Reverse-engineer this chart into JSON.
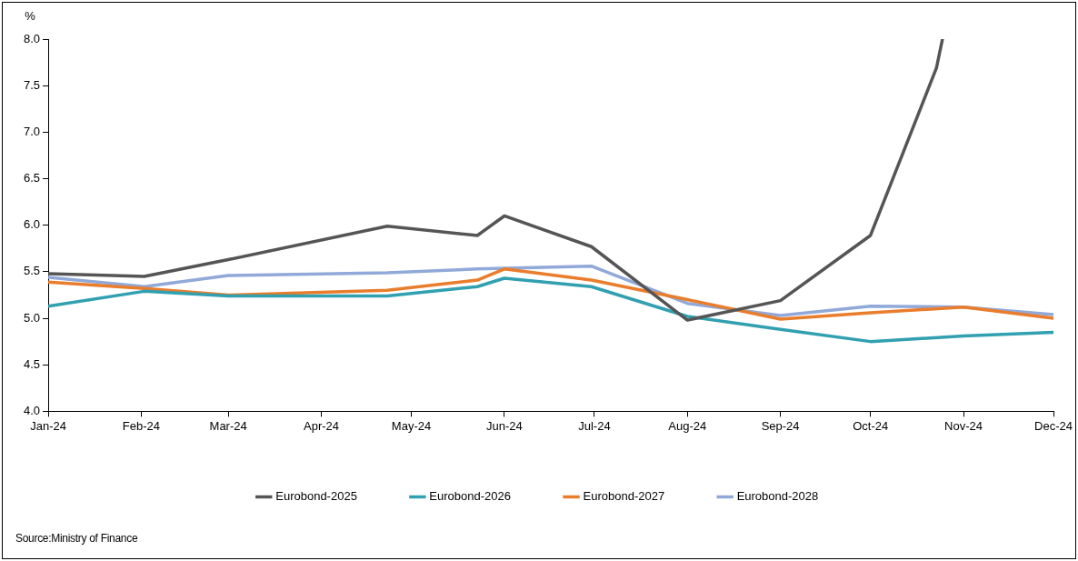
{
  "chart_data": {
    "type": "line",
    "ylabel": "%",
    "legend": "bottom",
    "marker": "none",
    "line_style": "solid",
    "grid": false,
    "xlim": [
      "2024-01-01",
      "2024-12-01"
    ],
    "ylim": [
      4,
      8
    ],
    "xticks": [
      {
        "value": "2024-01-01",
        "label": "Jan-24"
      },
      {
        "value": "2024-02-01",
        "label": "Feb-24"
      },
      {
        "value": "2024-03-01",
        "label": "Mar-24"
      },
      {
        "value": "2024-04-01",
        "label": "Apr-24"
      },
      {
        "value": "2024-05-01",
        "label": "May-24"
      },
      {
        "value": "2024-06-01",
        "label": "Jun-24"
      },
      {
        "value": "2024-07-01",
        "label": "Jul-24"
      },
      {
        "value": "2024-08-01",
        "label": "Aug-24"
      },
      {
        "value": "2024-09-01",
        "label": "Sep-24"
      },
      {
        "value": "2024-10-01",
        "label": "Oct-24"
      },
      {
        "value": "2024-11-01",
        "label": "Nov-24"
      },
      {
        "value": "2024-12-01",
        "label": "Dec-24"
      }
    ],
    "yticks": [
      {
        "value": 4,
        "label": "4.0"
      },
      {
        "value": 4.5,
        "label": "4.5"
      },
      {
        "value": 5,
        "label": "5.0"
      },
      {
        "value": 5.5,
        "label": "5.5"
      },
      {
        "value": 6,
        "label": "6.0"
      },
      {
        "value": 6.5,
        "label": "6.5"
      },
      {
        "value": 7,
        "label": "7.0"
      },
      {
        "value": 7.5,
        "label": "7.5"
      },
      {
        "value": 8,
        "label": "8.0"
      }
    ],
    "series": [
      {
        "name": "Eurobond-2025",
        "color": "#555555",
        "x": [
          "2024-01-01",
          "2024-02-02",
          "2024-03-01",
          "2024-04-23",
          "2024-05-23",
          "2024-06-01",
          "2024-06-30",
          "2024-08-01",
          "2024-09-01",
          "2024-10-01",
          "2024-10-23",
          "2024-10-25"
        ],
        "values": [
          5.48,
          5.45,
          5.63,
          5.99,
          5.89,
          6.1,
          5.77,
          4.98,
          5.19,
          5.89,
          7.69,
          8.0
        ]
      },
      {
        "name": "Eurobond-2026",
        "color": "#31a0b0",
        "x": [
          "2024-01-01",
          "2024-02-02",
          "2024-03-01",
          "2024-04-23",
          "2024-05-23",
          "2024-06-01",
          "2024-06-30",
          "2024-08-01",
          "2024-09-01",
          "2024-10-01",
          "2024-11-01",
          "2024-12-01"
        ],
        "values": [
          5.13,
          5.29,
          5.24,
          5.24,
          5.34,
          5.43,
          5.34,
          5.02,
          4.88,
          4.75,
          4.81,
          4.85
        ]
      },
      {
        "name": "Eurobond-2027",
        "color": "#ea7d2c",
        "x": [
          "2024-01-01",
          "2024-02-02",
          "2024-03-01",
          "2024-04-23",
          "2024-05-23",
          "2024-06-01",
          "2024-06-30",
          "2024-08-01",
          "2024-09-01",
          "2024-10-01",
          "2024-11-01",
          "2024-12-01"
        ],
        "values": [
          5.39,
          5.32,
          5.25,
          5.3,
          5.41,
          5.53,
          5.41,
          5.2,
          4.99,
          5.06,
          5.12,
          5.0
        ]
      },
      {
        "name": "Eurobond-2028",
        "color": "#91a9d8",
        "x": [
          "2024-01-01",
          "2024-02-02",
          "2024-03-01",
          "2024-04-23",
          "2024-05-23",
          "2024-06-30",
          "2024-08-01",
          "2024-09-01",
          "2024-10-01",
          "2024-11-01",
          "2024-12-01"
        ],
        "values": [
          5.44,
          5.34,
          5.46,
          5.49,
          5.53,
          5.56,
          5.16,
          5.03,
          5.13,
          5.12,
          5.04
        ]
      }
    ],
    "annotations": [
      "Source:Ministry of Finance"
    ]
  }
}
